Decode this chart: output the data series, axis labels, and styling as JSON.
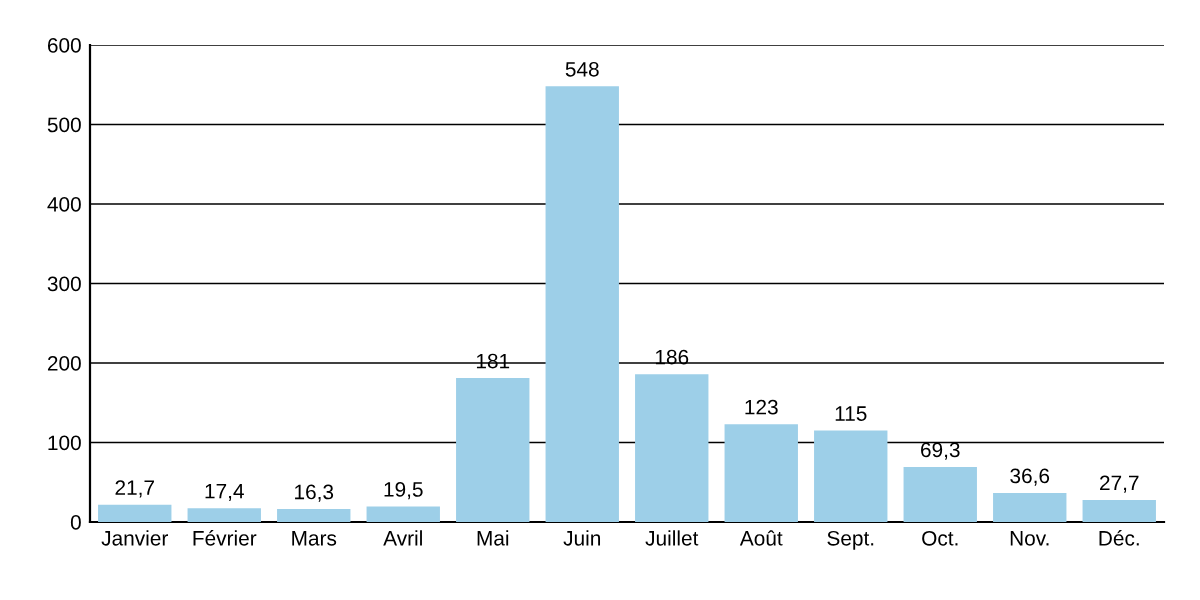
{
  "chart_data": {
    "type": "bar",
    "categories": [
      "Janvier",
      "Février",
      "Mars",
      "Avril",
      "Mai",
      "Juin",
      "Juillet",
      "Août",
      "Sept.",
      "Oct.",
      "Nov.",
      "Déc."
    ],
    "values": [
      21.7,
      17.4,
      16.3,
      19.5,
      181,
      548,
      186,
      123,
      115,
      69.3,
      36.6,
      27.7
    ],
    "value_labels": [
      "21,7",
      "17,4",
      "16,3",
      "19,5",
      "181",
      "548",
      "186",
      "123",
      "115",
      "69,3",
      "36,6",
      "27,7"
    ],
    "color": "#9dcfe8",
    "ylim": [
      0,
      600
    ],
    "yticks": [
      0,
      100,
      200,
      300,
      400,
      500,
      600
    ],
    "grid": "y"
  }
}
